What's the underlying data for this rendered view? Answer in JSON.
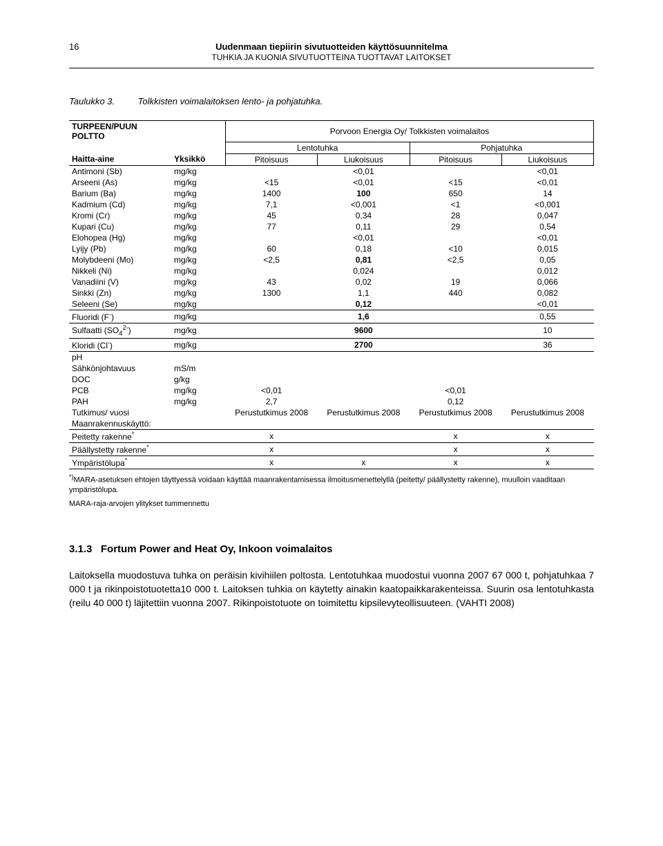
{
  "page_number": "16",
  "header": {
    "main": "Uudenmaan tiepiirin sivutuotteiden käyttösuunnitelma",
    "sub": "TUHKIA JA KUONIA SIVUTUOTTEINA TUOTTAVAT LAITOKSET"
  },
  "caption": {
    "label": "Taulukko 3.",
    "text": "Tolkkisten voimalaitoksen lento- ja pohjatuhka."
  },
  "table_headers": {
    "top_left": "TURPEEN/PUUN POLTTO",
    "company": "Porvoon Energia Oy/ Tolkkisten voimalaitos",
    "lento": "Lentotuhka",
    "pohja": "Pohjatuhka",
    "haitta": "Haitta-aine",
    "yksikko": "Yksikkö",
    "pitoisuus": "Pitoisuus",
    "liukoisuus": "Liukoisuus"
  },
  "rows": [
    {
      "n": "Antimoni (Sb)",
      "u": "mg/kg",
      "a": "",
      "b": "<0,01",
      "c": "",
      "d": "<0,01"
    },
    {
      "n": "Arseeni (As)",
      "u": "mg/kg",
      "a": "<15",
      "b": "<0,01",
      "c": "<15",
      "d": "<0,01"
    },
    {
      "n": "Barium (Ba)",
      "u": "mg/kg",
      "a": "1400",
      "b": "100",
      "bb": true,
      "c": "650",
      "d": "14"
    },
    {
      "n": "Kadmium (Cd)",
      "u": "mg/kg",
      "a": "7,1",
      "b": "<0,001",
      "c": "<1",
      "d": "<0,001"
    },
    {
      "n": "Kromi (Cr)",
      "u": "mg/kg",
      "a": "45",
      "b": "0,34",
      "c": "28",
      "d": "0,047"
    },
    {
      "n": "Kupari (Cu)",
      "u": "mg/kg",
      "a": "77",
      "b": "0,11",
      "c": "29",
      "d": "0,54"
    },
    {
      "n": "Elohopea (Hg)",
      "u": "mg/kg",
      "a": "",
      "b": "<0,01",
      "c": "",
      "d": "<0,01"
    },
    {
      "n": "Lyijy (Pb)",
      "u": "mg/kg",
      "a": "60",
      "b": "0,18",
      "c": "<10",
      "d": "0,015"
    },
    {
      "n": "Molybdeeni (Mo)",
      "u": "mg/kg",
      "a": "<2,5",
      "b": "0,81",
      "bb": true,
      "c": "<2,5",
      "d": "0,05"
    },
    {
      "n": "Nikkeli (Ni)",
      "u": "mg/kg",
      "a": "",
      "b": "0,024",
      "c": "",
      "d": "0,012"
    },
    {
      "n": "Vanadiini (V)",
      "u": "mg/kg",
      "a": "43",
      "b": "0,02",
      "c": "19",
      "d": "0,066"
    },
    {
      "n": "Sinkki (Zn)",
      "u": "mg/kg",
      "a": "1300",
      "b": "1,1",
      "c": "440",
      "d": "0,082"
    },
    {
      "n": "Seleeni (Se)",
      "u": "mg/kg",
      "a": "",
      "b": "0,12",
      "bb": true,
      "c": "",
      "d": "<0,01"
    }
  ],
  "special_rows": [
    {
      "html": "Fluoridi (F<sup>-</sup>)",
      "u": "mg/kg",
      "a": "",
      "b": "1,6",
      "bb": true,
      "c": "",
      "d": "0,55"
    },
    {
      "html": "Sulfaatti (SO<sub>4</sub><sup>2-</sup>)",
      "u": "mg/kg",
      "a": "",
      "b": "9600",
      "bb": true,
      "c": "",
      "d": "10"
    },
    {
      "html": "Kloridi (Cl<sup>-</sup>)",
      "u": "mg/kg",
      "a": "",
      "b": "2700",
      "bb": true,
      "c": "",
      "d": "36"
    }
  ],
  "misc_rows": [
    {
      "n": "pH",
      "u": ""
    },
    {
      "n": "Sähkönjohtavuus",
      "u": "mS/m"
    },
    {
      "n": "DOC",
      "u": "g/kg"
    },
    {
      "n": "PCB",
      "u": "mg/kg",
      "a": "<0,01",
      "c": "<0,01"
    },
    {
      "n": "PAH",
      "u": "mg/kg",
      "a": "2,7",
      "c": "0,12"
    }
  ],
  "tutkimus": {
    "n": "Tutkimus/ vuosi",
    "a": "Perustutkimus 2008",
    "b": "Perustutkimus 2008",
    "c": "Perustutkimus 2008",
    "d": "Perustutkimus 2008"
  },
  "maan": "Maanrakennuskäyttö:",
  "xrows": [
    {
      "html": "Peitetty rakenne<sup>*</sup>",
      "a": "x",
      "b": "",
      "c": "x",
      "d": "x"
    },
    {
      "html": "Päällystetty rakenne<sup>*</sup>",
      "a": "x",
      "b": "",
      "c": "x",
      "d": "x"
    },
    {
      "html": "Ympäristölupa<sup>*</sup>",
      "a": "x",
      "b": "x",
      "c": "x",
      "d": "x"
    }
  ],
  "footnote1_pre": "*)",
  "footnote1": "MARA-asetuksen ehtojen täyttyessä voidaan käyttää maanrakentamisessa ilmoitusmenettelyllä (peitetty/ päällystetty rakenne), muulloin vaaditaan ympäristölupa.",
  "footnote2": "MARA-raja-arvojen ylitykset tummennettu",
  "section": {
    "num": "3.1.3",
    "title": "Fortum Power and Heat Oy, Inkoon voimalaitos"
  },
  "body": "Laitoksella muodostuva tuhka on peräisin kivihiilen poltosta. Lentotuhkaa muodostui vuonna 2007 67 000 t, pohjatuhkaa 7 000 t ja rikinpoistotuotetta10 000 t. Laitoksen tuhkia on käytetty ainakin kaatopaikkarakenteissa. Suurin osa lentotuhkasta (reilu 40 000 t) läjitettiin vuonna 2007. Rikinpoistotuote on toimitettu kipsilevyteollisuuteen. (VAHTI 2008)"
}
